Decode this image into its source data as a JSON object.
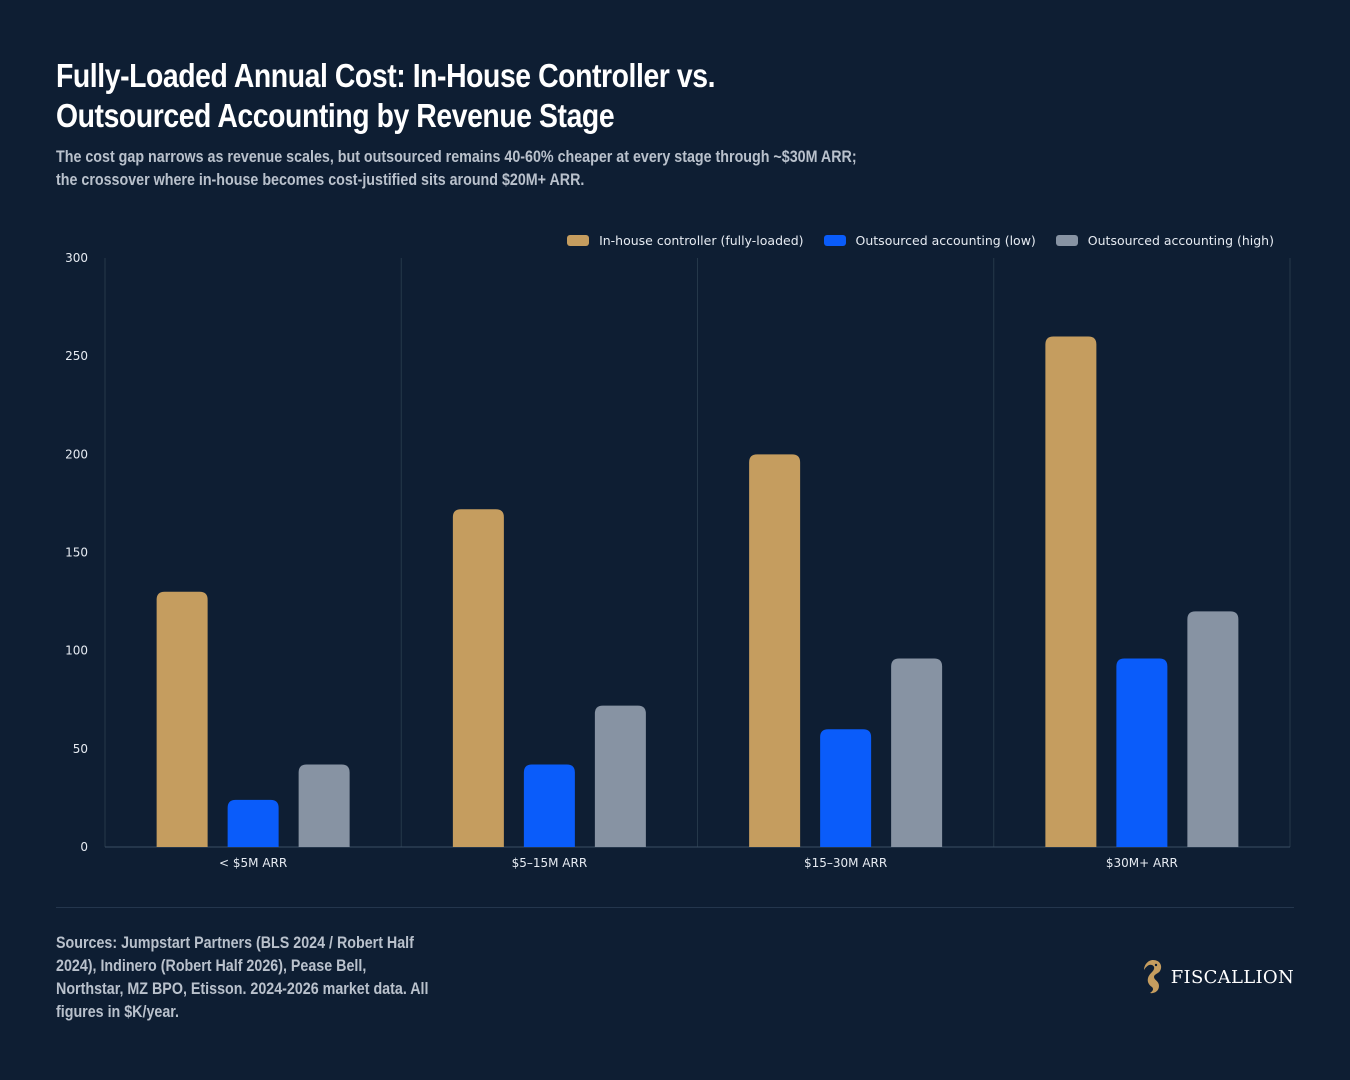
{
  "header": {
    "title_lines": [
      "Fully-Loaded Annual Cost: In-House Controller vs.",
      "Outsourced Accounting by Revenue Stage"
    ],
    "subtitle_lines": [
      "The cost gap narrows as revenue scales, but outsourced remains 40-60% cheaper at every stage through ~$30M ARR;",
      "the crossover where in-house becomes cost-justified sits around $20M+ ARR."
    ]
  },
  "chart_data": {
    "type": "bar",
    "categories": [
      "< $5M ARR",
      "$5–15M ARR",
      "$15–30M ARR",
      "$30M+ ARR"
    ],
    "series": [
      {
        "name": "In-house controller (fully-loaded)",
        "values": [
          130,
          172,
          200,
          260
        ],
        "color": "#c59d5f"
      },
      {
        "name": "Outsourced accounting (low)",
        "values": [
          24,
          42,
          60,
          96
        ],
        "color": "#0a5cfa"
      },
      {
        "name": "Outsourced accounting (high)",
        "values": [
          42,
          72,
          96,
          120
        ],
        "color": "#8793a3"
      }
    ],
    "ylim": [
      0,
      300
    ],
    "yticks": [
      0,
      50,
      100,
      150,
      200,
      250,
      300
    ],
    "legend_position": "top-right",
    "grid": "vertical category separators"
  },
  "footer": {
    "sources_lines": [
      "Sources: Jumpstart Partners (BLS 2024 / Robert Half",
      "2024), Indinero (Robert Half 2026), Pease Bell,",
      "Northstar, MZ BPO, Etisson. 2024-2026 market data. All",
      "figures in $K/year."
    ],
    "brand": "FISCALLION",
    "brand_icon": "seahorse-logo-icon",
    "brand_color": "#c59d5f"
  },
  "colors": {
    "background": "#0e1e33",
    "axis_text": "#e6ebf2",
    "grid": "#25384a"
  }
}
